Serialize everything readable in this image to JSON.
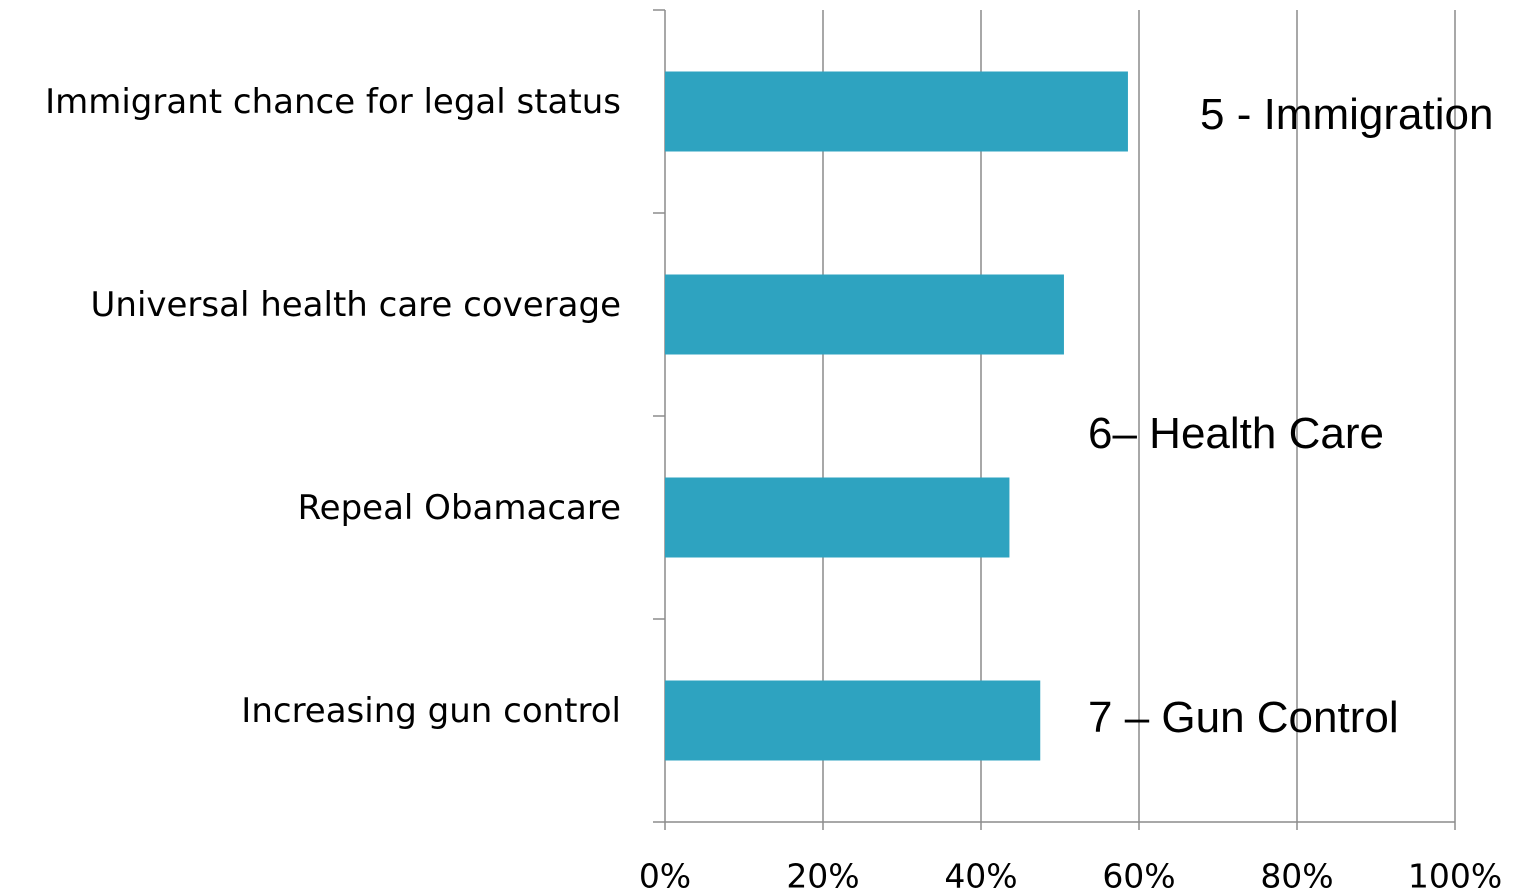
{
  "chart_data": {
    "type": "bar",
    "orientation": "horizontal",
    "categories": [
      "Immigrant chance for legal status",
      "Universal health care coverage",
      "Repeal Obamacare",
      "Increasing gun control"
    ],
    "values": [
      58.6,
      50.5,
      43.6,
      47.5
    ],
    "xlim": [
      0,
      100
    ],
    "x_ticks": [
      "0%",
      "20%",
      "40%",
      "60%",
      "80%",
      "100%"
    ],
    "bar_color": "#2ea3c0",
    "grid": true,
    "legend": "none",
    "annotations": [
      {
        "text": "5 - Immigration",
        "category_index": 0
      },
      {
        "text": "6– Health Care",
        "category_index": 1.6
      },
      {
        "text": "7 – Gun Control",
        "category_index": 3
      }
    ]
  }
}
